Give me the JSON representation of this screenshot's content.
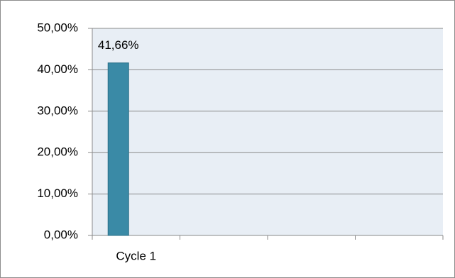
{
  "chart_data": {
    "type": "bar",
    "categories": [
      "Cycle 1",
      null,
      null,
      null
    ],
    "values": [
      41.66,
      null,
      null,
      null
    ],
    "value_labels": [
      "41,66%",
      null,
      null,
      null
    ],
    "color": "#3a8aa6",
    "ylim": [
      0,
      50
    ],
    "yticks": [
      {
        "value": 0,
        "label": "0,00%"
      },
      {
        "value": 10,
        "label": "10,00%"
      },
      {
        "value": 20,
        "label": "20,00%"
      },
      {
        "value": 30,
        "label": "30,00%"
      },
      {
        "value": 40,
        "label": "40,00%"
      },
      {
        "value": 50,
        "label": "50,00%"
      }
    ],
    "grid": true
  }
}
